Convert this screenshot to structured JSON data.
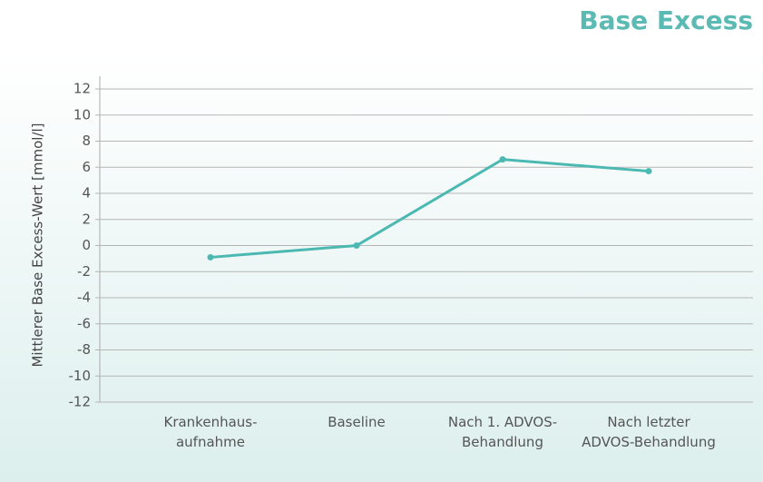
{
  "chart_data": {
    "type": "line",
    "title": "Base Excess",
    "ylabel": "Mittlerer Base Excess-Wert [mmol/l]",
    "categories": [
      "Krankenhaus-\naufnahme",
      "Baseline",
      "Nach 1. ADVOS-\nBehandlung",
      "Nach letzter\nADVOS-Behandlung"
    ],
    "values": [
      -0.9,
      0.0,
      6.6,
      5.7
    ],
    "color": "#4cb8b2",
    "ylim": [
      -12,
      12
    ],
    "yticks": [
      -12,
      -10,
      -8,
      -6,
      -4,
      -2,
      0,
      2,
      4,
      6,
      8,
      10,
      12
    ],
    "grid": true
  }
}
